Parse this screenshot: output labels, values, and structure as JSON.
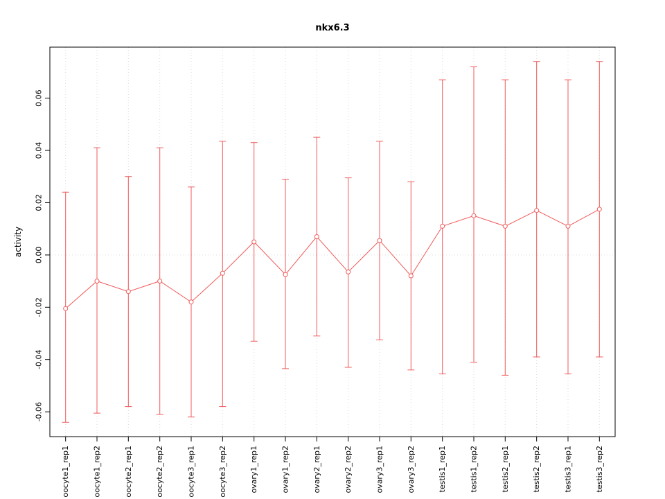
{
  "chart_data": {
    "type": "scatter",
    "title": "nkx6.3",
    "xlabel": "",
    "ylabel": "activity",
    "ylim": [
      -0.0695,
      0.0795
    ],
    "yticks": [
      -0.06,
      -0.04,
      -0.02,
      0.0,
      0.02,
      0.04,
      0.06
    ],
    "grid": true,
    "zero_line": true,
    "line_color": "#f05a5a",
    "grid_color": "#d9d9d9",
    "frame_color": "#000000",
    "categories": [
      "oocyte1_rep1",
      "oocyte1_rep2",
      "oocyte2_rep1",
      "oocyte2_rep2",
      "oocyte3_rep1",
      "oocyte3_rep2",
      "ovary1_rep1",
      "ovary1_rep2",
      "ovary2_rep1",
      "ovary2_rep2",
      "ovary3_rep1",
      "ovary3_rep2",
      "testis1_rep1",
      "testis1_rep2",
      "testis2_rep1",
      "testis2_rep2",
      "testis3_rep1",
      "testis3_rep2"
    ],
    "series": [
      {
        "name": "activity",
        "values": [
          -0.0205,
          -0.01,
          -0.014,
          -0.01,
          -0.018,
          -0.007,
          0.005,
          -0.0075,
          0.007,
          -0.0065,
          0.0055,
          -0.008,
          0.011,
          0.015,
          0.011,
          0.017,
          0.011,
          0.0175
        ],
        "upper": [
          0.024,
          0.041,
          0.03,
          0.041,
          0.026,
          0.0435,
          0.043,
          0.029,
          0.045,
          0.0295,
          0.0435,
          0.028,
          0.067,
          0.072,
          0.067,
          0.074,
          0.067,
          0.074
        ],
        "lower": [
          -0.064,
          -0.0605,
          -0.058,
          -0.061,
          -0.062,
          -0.058,
          -0.033,
          -0.0435,
          -0.031,
          -0.043,
          -0.0325,
          -0.044,
          -0.0455,
          -0.041,
          -0.046,
          -0.039,
          -0.0455,
          -0.039
        ]
      }
    ]
  }
}
